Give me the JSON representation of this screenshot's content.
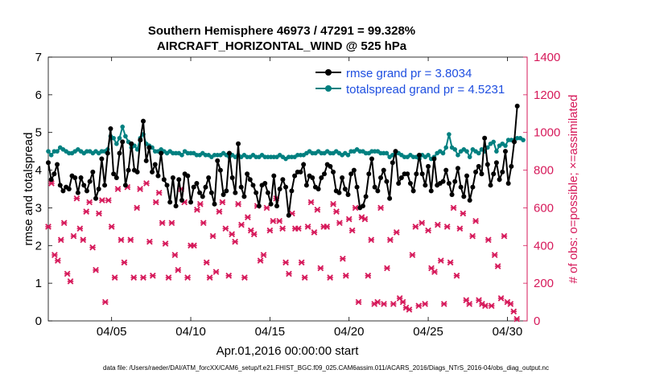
{
  "chart_data": {
    "type": "line",
    "title_line1": "Southern Hemisphere 46973 / 47291 = 99.328%",
    "title_line2": "AIRCRAFT_HORIZONTAL_WIND @ 525 hPa",
    "xlabel": "Apr.01,2016 00:00:00 start",
    "ylabel_left": "rmse and totalspread",
    "ylabel_right": "# of obs: o=possible; ×=assimilated",
    "footnote": "data file: /Users/raeder/DAI/ATM_forcXX/CAM6_setup/f.e21.FHIST_BGC.f09_025.CAM6assim.011/ACARS_2016/Diags_NTrS_2016-04/obs_diag_output.nc",
    "xlim": [
      1,
      31.25
    ],
    "ylim_left": [
      0,
      7
    ],
    "ylim_right": [
      0,
      1400
    ],
    "x_ticks": [
      5,
      10,
      15,
      20,
      25,
      30
    ],
    "x_tick_labels": [
      "04/05",
      "04/10",
      "04/15",
      "04/20",
      "04/25",
      "04/30"
    ],
    "y_left_ticks": [
      "0",
      "1",
      "2",
      "3",
      "4",
      "5",
      "6",
      "7"
    ],
    "y_right_ticks": [
      "0",
      "200",
      "400",
      "600",
      "800",
      "1000",
      "1200",
      "1400"
    ],
    "legend": [
      {
        "label": "rmse grand pr = 3.8034",
        "color": "#000000"
      },
      {
        "label": "totalspread grand pr = 4.5231",
        "color": "#008080"
      }
    ],
    "colors": {
      "rmse": "#000000",
      "spread": "#008080",
      "obs": "#d6195a",
      "legend_text": "#1f4fe0"
    },
    "series": [
      {
        "name": "rmse",
        "values": [
          4.2,
          3.75,
          3.9,
          4.15,
          3.6,
          3.45,
          3.55,
          3.5,
          3.85,
          3.8,
          3.4,
          3.8,
          3.6,
          3.45,
          3.7,
          3.95,
          3.25,
          3.5,
          4.3,
          3.6,
          4.45,
          5.1,
          3.9,
          3.8,
          4.45,
          4.75,
          3.6,
          4.0,
          4.7,
          4.0,
          3.95,
          4.8,
          5.3,
          4.25,
          4.6,
          3.95,
          4.15,
          3.85,
          4.45,
          3.75,
          3.6,
          3.15,
          3.8,
          3.05,
          3.75,
          3.2,
          3.9,
          3.85,
          3.15,
          3.55,
          3.65,
          3.4,
          3.3,
          3.55,
          3.8,
          3.4,
          3.1,
          4.25,
          4.0,
          3.35,
          3.45,
          4.45,
          3.8,
          3.4,
          4.7,
          3.55,
          3.3,
          3.9,
          3.75,
          3.6,
          3.4,
          3.05,
          3.6,
          3.65,
          3.4,
          3.1,
          3.85,
          3.05,
          3.5,
          3.75,
          3.55,
          2.8,
          3.45,
          3.85,
          3.95,
          3.95,
          4.15,
          3.6,
          3.85,
          3.8,
          3.55,
          3.5,
          3.8,
          3.9,
          4.15,
          4.1,
          3.95,
          3.45,
          3.4,
          3.8,
          3.5,
          3.35,
          3.9,
          4.0,
          3.55,
          3.0,
          3.05,
          3.3,
          3.9,
          4.3,
          3.55,
          3.45,
          3.8,
          4.0,
          3.7,
          3.25,
          4.2,
          4.5,
          3.65,
          3.8,
          3.9,
          3.9,
          3.65,
          3.45,
          3.9,
          4.4,
          3.9,
          3.6,
          4.1,
          3.45,
          4.3,
          3.6,
          3.65,
          3.7,
          4.0,
          3.65,
          3.35,
          3.7,
          4.05,
          3.55,
          3.3,
          3.85,
          3.2,
          3.55,
          3.95,
          4.1,
          3.9,
          4.85,
          4.15,
          3.6,
          3.9,
          4.2,
          3.75,
          3.95,
          4.5,
          3.65,
          4.1,
          4.75,
          5.7
        ],
        "x_start": 1.0,
        "x_step": 0.1875
      },
      {
        "name": "totalspread",
        "values": [
          4.5,
          4.4,
          4.5,
          4.5,
          4.6,
          4.55,
          4.5,
          4.45,
          4.45,
          4.5,
          4.55,
          4.5,
          4.45,
          4.5,
          4.5,
          4.45,
          4.5,
          4.45,
          4.5,
          4.5,
          4.55,
          4.9,
          4.85,
          4.7,
          4.85,
          5.15,
          4.9,
          4.75,
          4.6,
          4.65,
          4.55,
          4.85,
          4.95,
          4.7,
          4.65,
          4.6,
          4.5,
          4.5,
          4.55,
          4.5,
          4.45,
          4.5,
          4.45,
          4.45,
          4.45,
          4.4,
          4.5,
          4.45,
          4.45,
          4.45,
          4.4,
          4.4,
          4.45,
          4.4,
          4.4,
          4.35,
          4.4,
          4.4,
          4.4,
          4.45,
          4.4,
          4.35,
          4.4,
          4.35,
          4.4,
          4.35,
          4.4,
          4.35,
          4.35,
          4.4,
          4.35,
          4.35,
          4.4,
          4.35,
          4.35,
          4.35,
          4.35,
          4.35,
          4.4,
          4.35,
          4.3,
          4.35,
          4.35,
          4.35,
          4.4,
          4.4,
          4.4,
          4.45,
          4.5,
          4.45,
          4.45,
          4.5,
          4.45,
          4.45,
          4.5,
          4.45,
          4.45,
          4.5,
          4.45,
          4.4,
          4.45,
          4.4,
          4.5,
          4.5,
          4.55,
          4.5,
          4.5,
          4.45,
          4.45,
          4.5,
          4.5,
          4.5,
          4.45,
          4.45,
          4.45,
          4.35,
          4.4,
          4.45,
          4.45,
          4.4,
          4.35,
          4.35,
          4.4,
          4.35,
          4.35,
          4.3,
          4.4,
          4.35,
          4.4,
          4.3,
          4.35,
          4.45,
          4.5,
          4.45,
          4.6,
          4.95,
          4.6,
          4.55,
          4.4,
          4.5,
          4.55,
          4.5,
          4.35,
          4.55,
          4.5,
          4.45,
          4.55,
          4.5,
          4.6,
          4.7,
          4.75,
          4.5,
          4.65,
          4.7,
          4.65,
          4.8,
          4.8,
          4.8,
          4.85,
          4.85,
          4.8
        ],
        "x_start": 1.0,
        "x_step": 0.1875
      },
      {
        "name": "obs_assimilated",
        "values": [
          500,
          730,
          350,
          320,
          430,
          520,
          250,
          210,
          450,
          650,
          490,
          430,
          580,
          630,
          390,
          270,
          570,
          640,
          100,
          640,
          500,
          230,
          700,
          430,
          310,
          710,
          430,
          230,
          600,
          700,
          230,
          730,
          420,
          240,
          630,
          680,
          520,
          410,
          230,
          520,
          350,
          270,
          700,
          630,
          230,
          400,
          400,
          590,
          620,
          520,
          310,
          230,
          450,
          260,
          580,
          630,
          490,
          240,
          460,
          420,
          620,
          510,
          230,
          550,
          480,
          460,
          610,
          320,
          350,
          600,
          480,
          530,
          650,
          530,
          490,
          310,
          250,
          570,
          490,
          490,
          310,
          230,
          500,
          630,
          470,
          590,
          280,
          500,
          500,
          230,
          620,
          580,
          520,
          330,
          240,
          540,
          480,
          600,
          100,
          550,
          540,
          240,
          430,
          90,
          100,
          600,
          90,
          280,
          430,
          90,
          470,
          120,
          100,
          70,
          60,
          350,
          500,
          80,
          520,
          90,
          480,
          280,
          260,
          510,
          320,
          90,
          500,
          310,
          600,
          240,
          490,
          570,
          110,
          90,
          450,
          530,
          110,
          90,
          80,
          430,
          80,
          350,
          290,
          120,
          450,
          100,
          90,
          50,
          10
        ],
        "x_start": 1.0,
        "x_step": 0.2
      },
      {
        "name": "obs_possible",
        "values": [],
        "x_start": 1.0,
        "x_step": 0.2
      }
    ],
    "right_axis_value_label": "0"
  }
}
